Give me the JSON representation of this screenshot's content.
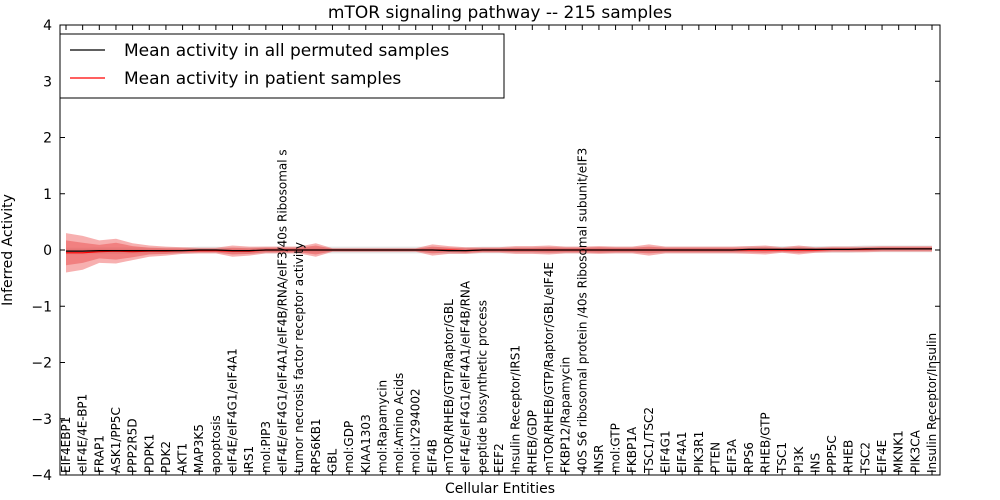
{
  "chart_data": {
    "type": "line",
    "title": "mTOR signaling pathway -- 215 samples",
    "xlabel": "Cellular Entities",
    "ylabel": "Inferred Activity",
    "ylim": [
      -4,
      4
    ],
    "yticks": [
      "−4",
      "−3",
      "−2",
      "−1",
      "0",
      "1",
      "2",
      "3",
      "4"
    ],
    "ytick_values": [
      -4,
      -3,
      -2,
      -1,
      0,
      1,
      2,
      3,
      4
    ],
    "legend_position": "top-left",
    "categories": [
      "EIF4EBP1",
      "eIF4E/4E-BP1",
      "FRAP1",
      "ASK1/PP5C",
      "PPP2R5D",
      "PDPK1",
      "PDK2",
      "AKT1",
      "MAP3K5",
      "apoptosis",
      "eIF4E/eIF4G1/eIF4A1",
      "IRS1",
      "mol:PIP3",
      "eIF4E/eIF4G1/eIF4A1/eIF4B/RNA/eIF3/40s Ribosomal s",
      "tumor necrosis factor receptor activity",
      "RPS6KB1",
      "GBL",
      "mol:GDP",
      "KIAA1303",
      "mol:Rapamycin",
      "mol:Amino Acids",
      "mol:LY294002",
      "EIF4B",
      "mTOR/RHEB/GTP/Raptor/GBL",
      "eIF4E/eIF4G1/eIF4A1/eIF4B/RNA",
      "peptide biosynthetic process",
      "EEF2",
      "Insulin Receptor/IRS1",
      "RHEB/GDP",
      "mTOR/RHEB/GTP/Raptor/GBL/eIF4E",
      "FKBP12/Rapamycin",
      "40S S6 ribosomal protein /40s Ribosomal subunit/eIF3",
      "INSR",
      "mol:GTP",
      "FKBP1A",
      "TSC1/TSC2",
      "EIF4G1",
      "EIF4A1",
      "PIK3R1",
      "PTEN",
      "EIF3A",
      "RPS6",
      "RHEB/GTP",
      "TSC1",
      "PI3K",
      "INS",
      "PPP5C",
      "RHEB",
      "TSC2",
      "EIF4E",
      "MKNK1",
      "PIK3CA",
      "Insulin Receptor/Insulin"
    ],
    "series": [
      {
        "name": "Mean activity in all permuted samples",
        "color": "#000000",
        "values": [
          -0.02,
          -0.02,
          -0.01,
          -0.01,
          -0.01,
          -0.01,
          -0.01,
          -0.01,
          0.0,
          0.0,
          -0.01,
          -0.01,
          0.0,
          0.0,
          0.0,
          0.0,
          0.0,
          0.0,
          0.0,
          0.0,
          0.0,
          0.0,
          0.0,
          -0.01,
          -0.01,
          0.0,
          0.0,
          0.0,
          0.0,
          0.0,
          0.0,
          0.0,
          0.0,
          0.0,
          0.0,
          0.0,
          0.0,
          0.0,
          0.0,
          0.0,
          0.0,
          0.01,
          0.01,
          0.01,
          0.01,
          0.01,
          0.01,
          0.01,
          0.02,
          0.02,
          0.02,
          0.02,
          0.02
        ],
        "band_inner": 0.03,
        "band_outer": 0.06
      },
      {
        "name": "Mean activity in patient samples",
        "color": "#ff0000",
        "values": [
          -0.05,
          -0.05,
          -0.03,
          -0.02,
          -0.03,
          -0.02,
          -0.02,
          -0.01,
          -0.01,
          -0.01,
          -0.02,
          -0.02,
          0.0,
          0.0,
          0.0,
          0.0,
          0.0,
          0.0,
          0.0,
          0.0,
          0.0,
          0.0,
          0.0,
          0.0,
          -0.01,
          0.0,
          0.0,
          0.0,
          0.0,
          0.0,
          0.0,
          0.0,
          0.0,
          0.0,
          0.0,
          0.0,
          0.0,
          0.0,
          0.0,
          0.0,
          0.0,
          0.0,
          0.0,
          0.0,
          0.0,
          0.0,
          0.01,
          0.01,
          0.01,
          0.02,
          0.02,
          0.02,
          0.02
        ],
        "band_inner": [
          0.22,
          0.18,
          0.12,
          0.15,
          0.1,
          0.06,
          0.05,
          0.04,
          0.03,
          0.03,
          0.06,
          0.05,
          0.04,
          0.04,
          0.04,
          0.08,
          0.02,
          0.02,
          0.02,
          0.02,
          0.02,
          0.02,
          0.06,
          0.04,
          0.04,
          0.03,
          0.03,
          0.04,
          0.04,
          0.05,
          0.04,
          0.04,
          0.05,
          0.04,
          0.04,
          0.06,
          0.04,
          0.04,
          0.04,
          0.04,
          0.04,
          0.04,
          0.05,
          0.03,
          0.05,
          0.03,
          0.03,
          0.03,
          0.03,
          0.03,
          0.03,
          0.03,
          0.03
        ],
        "band_outer": [
          0.35,
          0.3,
          0.2,
          0.22,
          0.15,
          0.1,
          0.08,
          0.06,
          0.05,
          0.05,
          0.1,
          0.08,
          0.06,
          0.06,
          0.06,
          0.12,
          0.03,
          0.03,
          0.03,
          0.03,
          0.03,
          0.03,
          0.1,
          0.07,
          0.06,
          0.05,
          0.05,
          0.07,
          0.07,
          0.08,
          0.06,
          0.06,
          0.07,
          0.06,
          0.06,
          0.1,
          0.06,
          0.06,
          0.06,
          0.06,
          0.06,
          0.07,
          0.08,
          0.05,
          0.08,
          0.05,
          0.05,
          0.05,
          0.05,
          0.05,
          0.05,
          0.05,
          0.05
        ]
      }
    ]
  }
}
